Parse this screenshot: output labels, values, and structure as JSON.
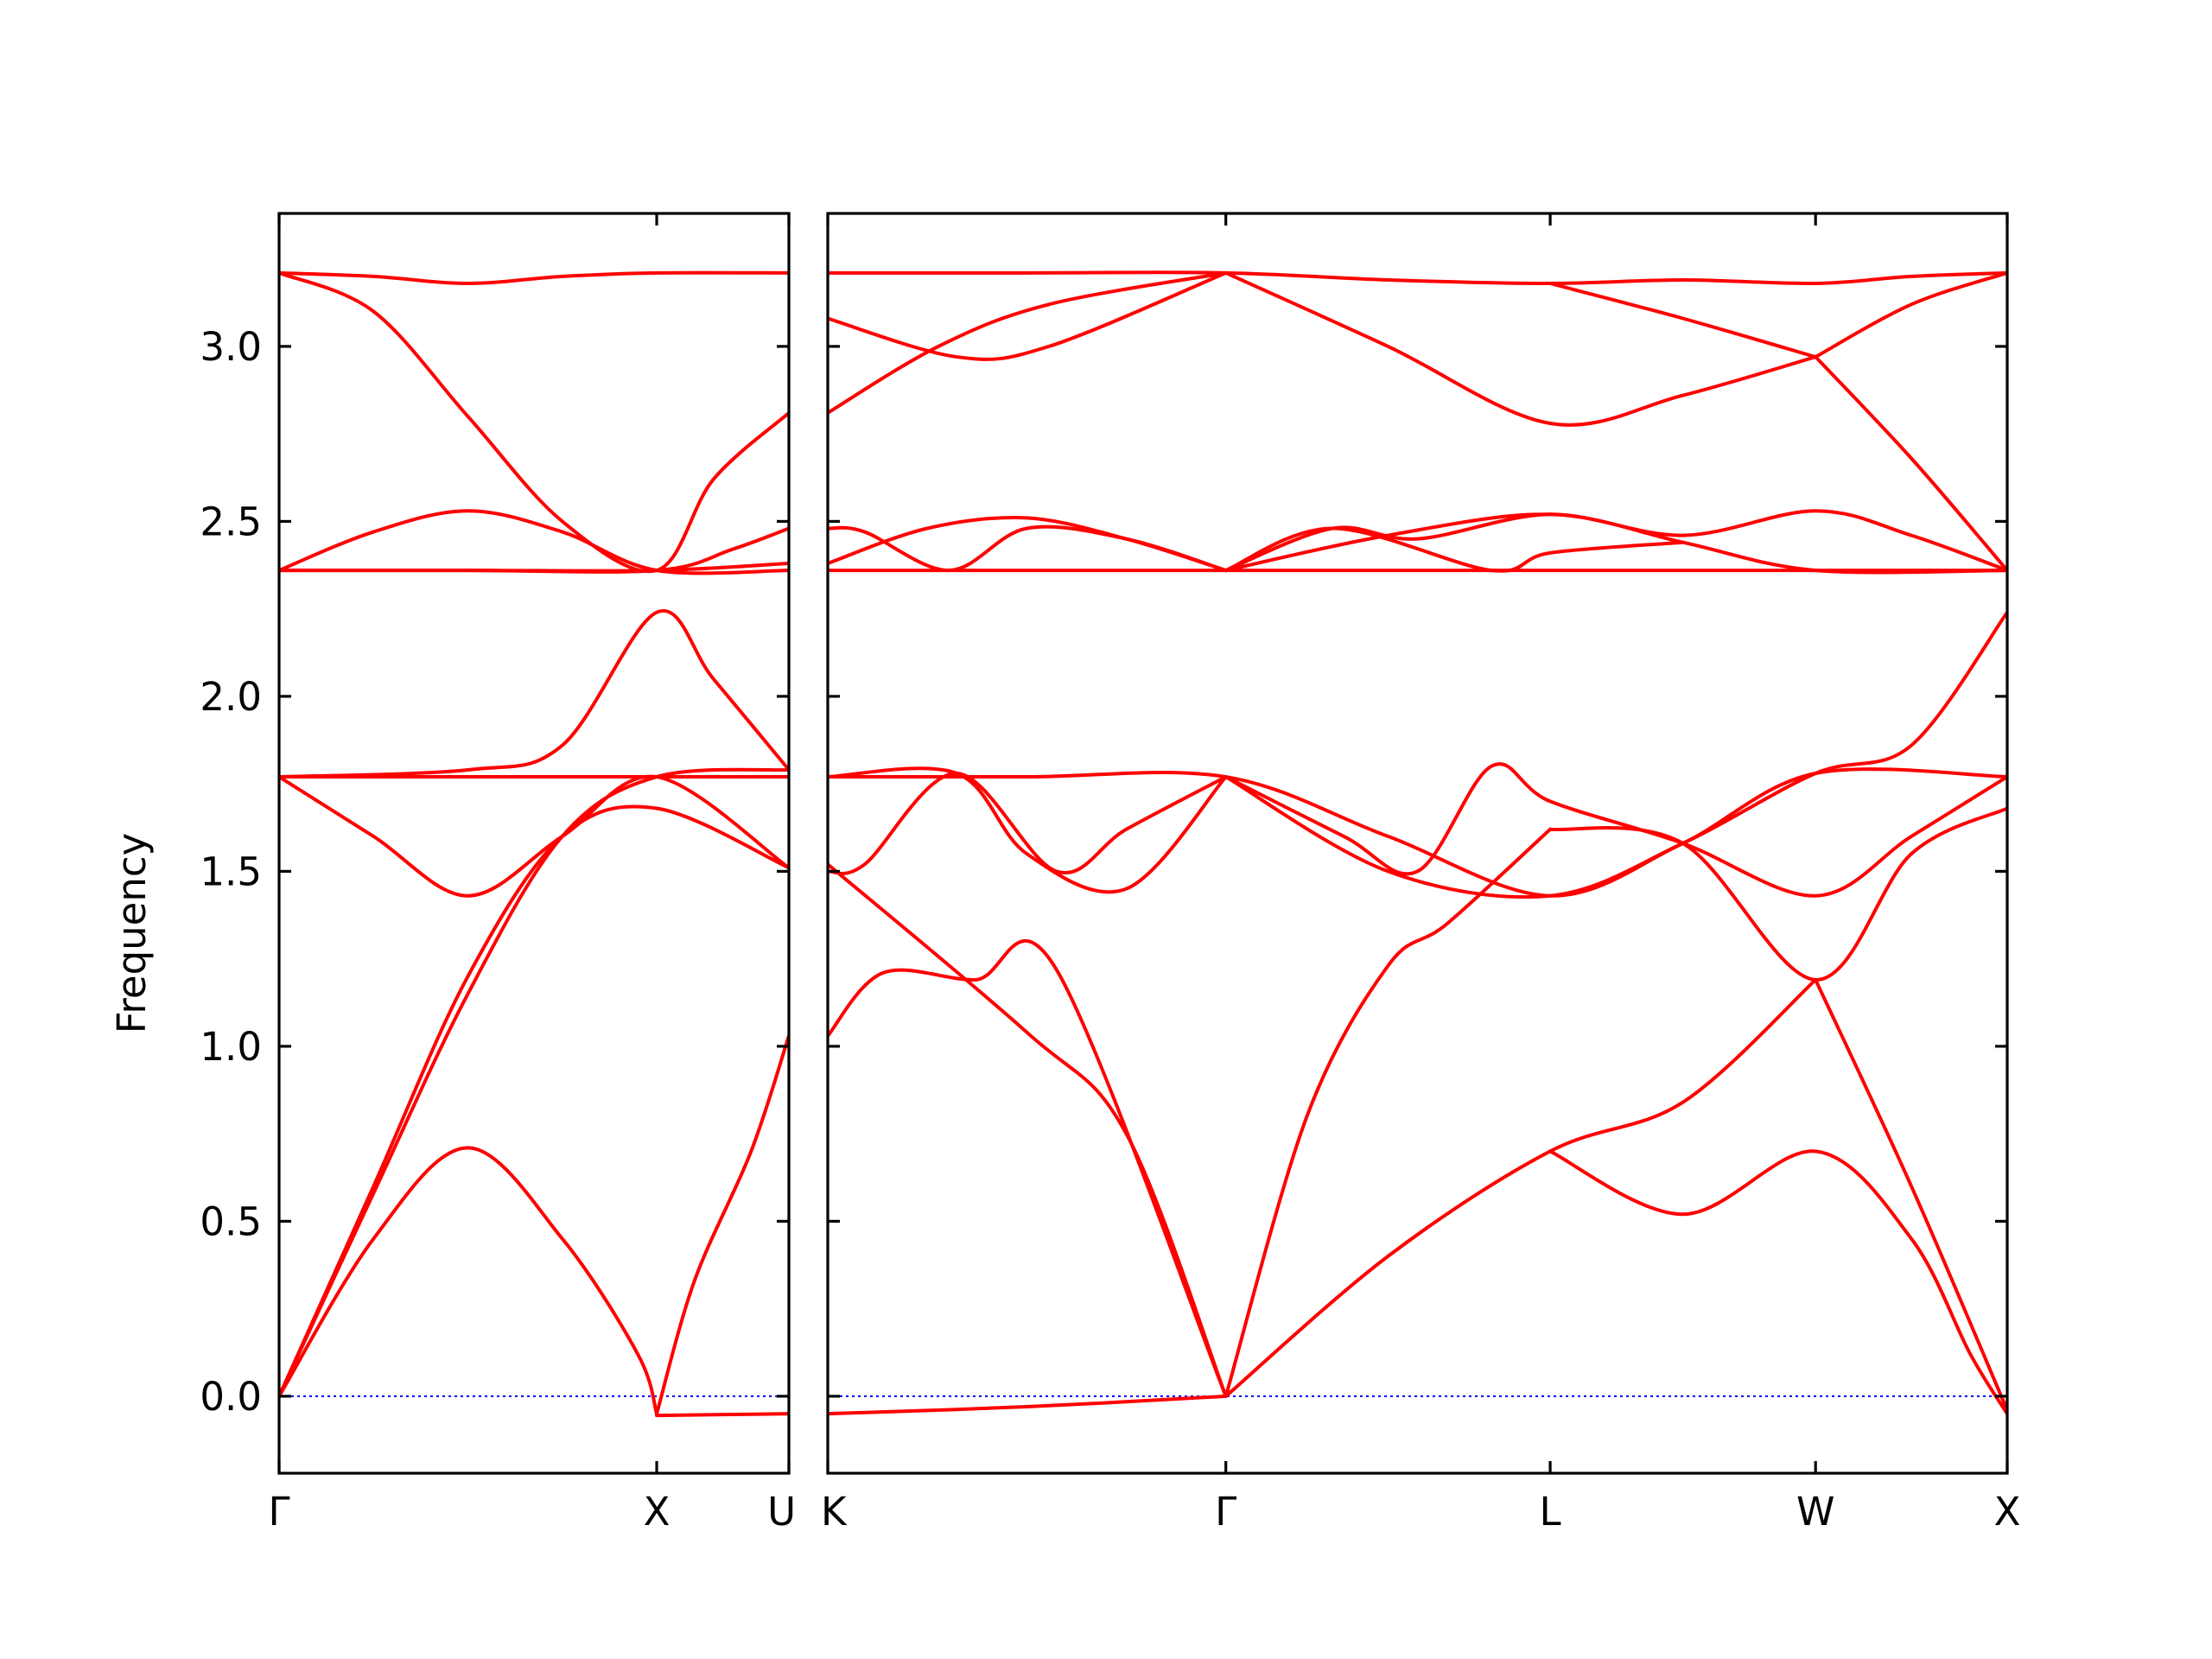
{
  "chart_data": {
    "type": "line",
    "title": "",
    "ylabel": "Frequency",
    "ylim": [
      -0.22,
      3.38
    ],
    "yticks": [
      0.0,
      0.5,
      1.0,
      1.5,
      2.0,
      2.5,
      3.0
    ],
    "ytick_labels": [
      "0.0",
      "0.5",
      "1.0",
      "1.5",
      "2.0",
      "2.5",
      "3.0"
    ],
    "zero_line": {
      "value": 0.0,
      "color": "#0000ff",
      "style": "dotted"
    },
    "band_color": "#ff0000",
    "grid": false,
    "legend": "none",
    "panels": [
      {
        "xlim": [
          0,
          1.35
        ],
        "xticks": [
          {
            "position": 0,
            "label": "Γ"
          },
          {
            "position": 1.0,
            "label": "X"
          },
          {
            "position": 1.35,
            "label": "U"
          }
        ],
        "series": [
          {
            "x": [
              0,
              0.25,
              0.5,
              0.75,
              1.0,
              1.35
            ],
            "y": [
              3.21,
              3.2,
              3.18,
              3.2,
              3.21,
              3.21
            ]
          },
          {
            "x": [
              0,
              0.25,
              0.5,
              0.75,
              1.0,
              1.15,
              1.35
            ],
            "y": [
              3.21,
              3.1,
              2.8,
              2.5,
              2.36,
              2.62,
              2.81
            ]
          },
          {
            "x": [
              0,
              0.25,
              0.5,
              0.75,
              1.0,
              1.35
            ],
            "y": [
              2.36,
              2.47,
              2.53,
              2.47,
              2.36,
              2.36
            ]
          },
          {
            "x": [
              0,
              0.5,
              1.0,
              1.35
            ],
            "y": [
              2.36,
              2.36,
              2.36,
              2.38
            ]
          },
          {
            "x": [
              0,
              0.5,
              1.0,
              1.2,
              1.35
            ],
            "y": [
              2.36,
              2.36,
              2.36,
              2.42,
              2.48
            ]
          },
          {
            "x": [
              0,
              0.5,
              0.75,
              1.0,
              1.15,
              1.35
            ],
            "y": [
              1.77,
              1.79,
              1.86,
              2.24,
              2.05,
              1.79
            ]
          },
          {
            "x": [
              0,
              0.5,
              1.0,
              1.35
            ],
            "y": [
              1.77,
              1.77,
              1.77,
              1.77
            ]
          },
          {
            "x": [
              0,
              0.25,
              0.5,
              0.75,
              1.0,
              1.35
            ],
            "y": [
              1.77,
              1.6,
              1.43,
              1.6,
              1.77,
              1.51
            ]
          },
          {
            "x": [
              0,
              0.25,
              0.5,
              0.75,
              1.0,
              1.35
            ],
            "y": [
              0.0,
              0.6,
              1.2,
              1.6,
              1.68,
              1.51
            ]
          },
          {
            "x": [
              0,
              0.25,
              0.5,
              0.75,
              0.95,
              1.0
            ],
            "y": [
              0.0,
              0.45,
              0.71,
              0.45,
              0.12,
              -0.05
            ]
          },
          {
            "x": [
              0,
              0.25,
              0.5,
              0.75,
              1.0,
              1.35
            ],
            "y": [
              0.0,
              0.58,
              1.15,
              1.6,
              1.77,
              1.79
            ]
          },
          {
            "x": [
              1.0,
              1.1,
              1.25,
              1.35
            ],
            "y": [
              -0.05,
              0.33,
              0.7,
              1.03
            ]
          },
          {
            "x": [
              1.0,
              1.35
            ],
            "y": [
              -0.055,
              -0.05
            ]
          }
        ]
      },
      {
        "xlim": [
          0,
          3.2
        ],
        "xticks": [
          {
            "position": 0,
            "label": "K"
          },
          {
            "position": 1.08,
            "label": "Γ"
          },
          {
            "position": 1.96,
            "label": "L"
          },
          {
            "position": 2.68,
            "label": "W"
          },
          {
            "position": 3.2,
            "label": "X"
          }
        ],
        "series": [
          {
            "x": [
              0,
              0.54,
              1.08,
              1.52,
              1.96,
              2.32,
              2.68,
              2.94,
              3.2
            ],
            "y": [
              3.21,
              3.21,
              3.21,
              3.19,
              3.18,
              3.19,
              3.18,
              3.2,
              3.21
            ]
          },
          {
            "x": [
              0,
              0.35,
              0.6,
              1.08
            ],
            "y": [
              3.08,
              2.97,
              3.0,
              3.21
            ]
          },
          {
            "x": [
              0,
              0.3,
              0.6,
              1.08
            ],
            "y": [
              2.81,
              3.0,
              3.12,
              3.21
            ]
          },
          {
            "x": [
              1.08,
              1.52,
              1.96,
              2.32,
              2.68
            ],
            "y": [
              3.21,
              3.0,
              2.78,
              2.86,
              2.97
            ]
          },
          {
            "x": [
              1.96,
              2.32,
              2.68
            ],
            "y": [
              3.18,
              3.08,
              2.97
            ]
          },
          {
            "x": [
              2.68,
              2.94,
              3.2
            ],
            "y": [
              2.97,
              3.12,
              3.21
            ]
          },
          {
            "x": [
              2.68,
              2.94,
              3.2
            ],
            "y": [
              2.97,
              2.68,
              2.36
            ]
          },
          {
            "x": [
              0,
              0.27,
              0.54,
              1.08
            ],
            "y": [
              2.36,
              2.36,
              2.36,
              2.36
            ]
          },
          {
            "x": [
              1.08,
              1.52,
              1.96,
              2.68,
              3.2
            ],
            "y": [
              2.36,
              2.36,
              2.36,
              2.36,
              2.36
            ]
          },
          {
            "x": [
              0,
              0.1,
              0.33,
              0.54,
              0.81,
              1.08
            ],
            "y": [
              2.48,
              2.47,
              2.36,
              2.48,
              2.45,
              2.36
            ]
          },
          {
            "x": [
              0,
              0.27,
              0.54,
              0.81,
              1.08
            ],
            "y": [
              2.38,
              2.48,
              2.51,
              2.45,
              2.36
            ]
          },
          {
            "x": [
              1.08,
              1.37,
              1.6,
              1.96,
              2.32,
              2.68,
              2.94,
              3.2
            ],
            "y": [
              2.36,
              2.48,
              2.45,
              2.52,
              2.46,
              2.53,
              2.46,
              2.36
            ]
          },
          {
            "x": [
              1.08,
              1.52,
              1.96,
              2.32,
              2.68,
              3.2
            ],
            "y": [
              2.36,
              2.46,
              2.52,
              2.44,
              2.36,
              2.36
            ]
          },
          {
            "x": [
              1.08,
              1.37,
              1.8,
              1.96,
              2.32
            ],
            "y": [
              2.36,
              2.48,
              2.36,
              2.41,
              2.44
            ]
          },
          {
            "x": [
              0,
              0.54,
              1.08,
              1.52,
              1.96,
              2.32,
              2.68,
              3.2
            ],
            "y": [
              1.77,
              1.77,
              1.77,
              1.6,
              1.43,
              1.58,
              1.78,
              1.77
            ]
          },
          {
            "x": [
              0,
              0.35,
              0.54,
              0.81,
              1.08
            ],
            "y": [
              1.77,
              1.78,
              1.55,
              1.45,
              1.77
            ]
          },
          {
            "x": [
              0,
              0.1,
              0.35,
              0.62,
              0.81,
              1.08
            ],
            "y": [
              1.5,
              1.52,
              1.78,
              1.5,
              1.62,
              1.77
            ]
          },
          {
            "x": [
              1.08,
              1.4,
              1.6,
              1.8,
              1.96,
              2.32,
              2.68,
              2.94,
              3.2
            ],
            "y": [
              1.77,
              1.6,
              1.5,
              1.8,
              1.7,
              1.58,
              1.43,
              1.6,
              1.77
            ]
          },
          {
            "x": [
              1.08,
              1.52,
              1.96,
              2.32,
              2.68,
              2.94,
              3.2
            ],
            "y": [
              1.77,
              1.5,
              1.43,
              1.58,
              1.78,
              1.86,
              2.24
            ]
          },
          {
            "x": [
              1.96,
              2.32,
              2.68,
              2.94,
              3.2
            ],
            "y": [
              1.62,
              1.58,
              1.19,
              1.55,
              1.68
            ]
          },
          {
            "x": [
              0,
              0.15,
              0.4,
              0.62,
              1.08
            ],
            "y": [
              1.03,
              1.21,
              1.19,
              1.22,
              0.0
            ]
          },
          {
            "x": [
              0,
              0.54,
              0.81,
              1.08
            ],
            "y": [
              1.52,
              1.04,
              0.75,
              0.0
            ]
          },
          {
            "x": [
              1.08,
              1.3,
              1.52,
              1.68,
              1.96
            ],
            "y": [
              0.0,
              0.8,
              1.23,
              1.35,
              1.62
            ]
          },
          {
            "x": [
              1.08,
              1.52,
              1.96,
              2.32,
              2.68
            ],
            "y": [
              0.0,
              0.4,
              0.7,
              0.84,
              1.19
            ]
          },
          {
            "x": [
              1.96,
              2.32,
              2.68,
              2.94,
              3.1,
              3.2
            ],
            "y": [
              0.7,
              0.52,
              0.7,
              0.45,
              0.12,
              -0.05
            ]
          },
          {
            "x": [
              2.68,
              2.94,
              3.2
            ],
            "y": [
              1.19,
              0.6,
              -0.04
            ]
          },
          {
            "x": [
              0,
              0.54,
              1.08
            ],
            "y": [
              -0.05,
              -0.03,
              0.0
            ]
          }
        ]
      }
    ]
  }
}
